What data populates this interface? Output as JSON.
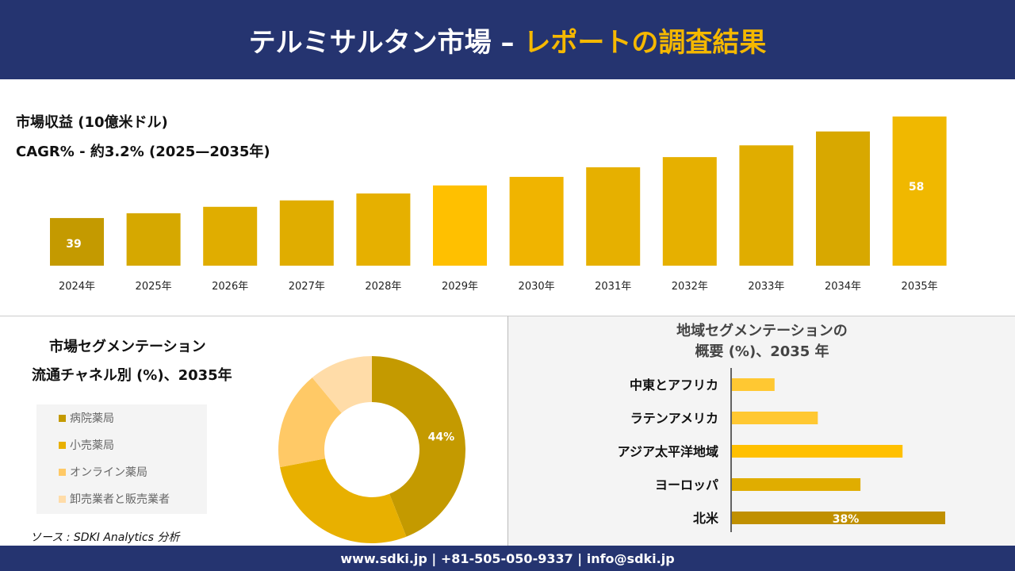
{
  "header": {
    "title_main": "テルミサルタン市場 –",
    "title_accent": "レポートの調査結果"
  },
  "revenue": {
    "label": "市場収益 (10億米ドル)",
    "cagr": "CAGR% - 約3.2% (2025—2035年)"
  },
  "chart_data": [
    {
      "type": "bar",
      "categories": [
        "2024年",
        "2025年",
        "2026年",
        "2027年",
        "2028年",
        "2029年",
        "2030年",
        "2031年",
        "2032年",
        "2033年",
        "2034年",
        "2035年"
      ],
      "values": [
        39,
        39.9,
        41.1,
        42.3,
        43.6,
        45.1,
        46.7,
        48.5,
        50.4,
        52.6,
        55.2,
        58
      ],
      "data_labels": {
        "0": "39",
        "11": "58"
      },
      "colors": [
        "#c49a00",
        "#d6a800",
        "#e0ad00",
        "#e0ad00",
        "#e6b000",
        "#ffc000",
        "#f0b400",
        "#e6b000",
        "#e6b000",
        "#e0ad00",
        "#d8a800",
        "#f0b800"
      ]
    },
    {
      "type": "pie",
      "title": "市場セグメンテーション 流通チャネル別 (%)、2035年",
      "categories": [
        "病院薬局",
        "小売薬局",
        "オンライン薬局",
        "卸売業者と販売業者"
      ],
      "values": [
        44,
        28,
        17,
        11
      ],
      "colors": [
        "#c49a00",
        "#e8b000",
        "#ffc966",
        "#ffdca8"
      ],
      "data_labels": {
        "0": "44%"
      }
    },
    {
      "type": "bar",
      "orientation": "horizontal",
      "title": "地域セグメンテーションの概要 (%)、2035 年",
      "categories": [
        "中東とアフリカ",
        "ラテンアメリカ",
        "アジア太平洋地域",
        "ヨーロッパ",
        "北米"
      ],
      "values": [
        7.6,
        15.3,
        30.4,
        22.9,
        38
      ],
      "colors": [
        "#ffc832",
        "#ffc832",
        "#ffc000",
        "#e0ad00",
        "#c09000"
      ],
      "data_labels": {
        "4": "38%"
      }
    }
  ],
  "segment": {
    "title1": "市場セグメンテーション",
    "title2": "流通チャネル別 (%)、2035年"
  },
  "region": {
    "title1": "地域セグメンテーションの",
    "title2": "概要 (%)、2035 年"
  },
  "source": "ソース : SDKI Analytics 分析",
  "footer": "www.sdki.jp | +81-505-050-9337 | info@sdki.jp"
}
